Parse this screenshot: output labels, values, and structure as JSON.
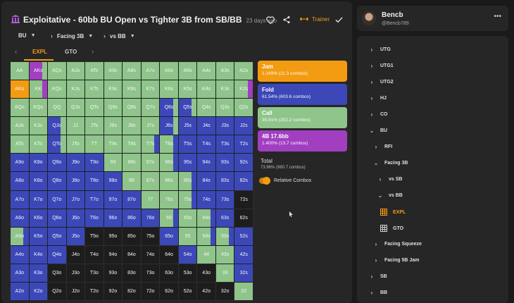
{
  "header": {
    "title": "Exploitative - 60bb BU Open vs Tighter 3B from SB/BB",
    "time_ago": "23 days ago",
    "trainer_label": "Trainer"
  },
  "filters": [
    {
      "label": "BU"
    },
    {
      "label": "Facing 3B"
    },
    {
      "label": "vs BB"
    }
  ],
  "tabs": [
    {
      "label": "EXPL",
      "active": true
    },
    {
      "label": "GTO",
      "active": false
    }
  ],
  "colors": {
    "jam": "#f39c12",
    "fold": "#3c48b8",
    "call": "#8fc48b",
    "bet": "#a13fc0",
    "accent": "#f39c12"
  },
  "legend": [
    {
      "key": "jam",
      "name": "Jam",
      "value": "1.149% (11.3 combos)"
    },
    {
      "key": "fold",
      "name": "Fold",
      "value": "61.54% (603.6 combos)"
    },
    {
      "key": "call",
      "name": "Call",
      "value": "35.91% (352.2 combos)"
    },
    {
      "key": "bet",
      "name": "4B 17.6bb",
      "value": "1.400% (13.7 combos)"
    }
  ],
  "total": {
    "label": "Total",
    "value": "73.96% (980.7 combos)"
  },
  "relative_combos": {
    "label": "Relative Combos",
    "on": true
  },
  "grid": {
    "rows": [
      [
        "AA",
        "AKs",
        "AQs",
        "AJs",
        "ATs",
        "A9s",
        "A8s",
        "A7s",
        "A6s",
        "A5s",
        "A4s",
        "A3s",
        "A2s"
      ],
      [
        "AKo",
        "KK",
        "KQs",
        "KJs",
        "KTs",
        "K9s",
        "K8s",
        "K7s",
        "K6s",
        "K5s",
        "K4s",
        "K3s",
        "K2s"
      ],
      [
        "AQo",
        "KQo",
        "QQ",
        "QJs",
        "QTs",
        "Q9s",
        "Q8s",
        "Q7s",
        "Q6s",
        "Q5s",
        "Q4s",
        "Q3s",
        "Q2s"
      ],
      [
        "AJo",
        "KJo",
        "QJo",
        "JJ",
        "JTs",
        "J9s",
        "J8s",
        "J7s",
        "J6s",
        "J5s",
        "J4s",
        "J3s",
        "J2s"
      ],
      [
        "ATo",
        "KTo",
        "QTo",
        "JTo",
        "TT",
        "T9s",
        "T8s",
        "T7s",
        "T6s",
        "T5s",
        "T4s",
        "T3s",
        "T2s"
      ],
      [
        "A9o",
        "K9o",
        "Q9o",
        "J9o",
        "T9o",
        "99",
        "98s",
        "97s",
        "96s",
        "95s",
        "94s",
        "93s",
        "92s"
      ],
      [
        "A8o",
        "K8o",
        "Q8o",
        "J8o",
        "T8o",
        "98o",
        "88",
        "87s",
        "86s",
        "85s",
        "84s",
        "83s",
        "82s"
      ],
      [
        "A7o",
        "K7o",
        "Q7o",
        "J7o",
        "T7o",
        "97o",
        "87o",
        "77",
        "76s",
        "75s",
        "74s",
        "73s",
        "72s"
      ],
      [
        "A6o",
        "K6o",
        "Q6o",
        "J6o",
        "T6o",
        "96o",
        "86o",
        "76o",
        "66",
        "65s",
        "64s",
        "63s",
        "62s"
      ],
      [
        "A5o",
        "K5o",
        "Q5o",
        "J5o",
        "T5o",
        "95o",
        "85o",
        "75o",
        "65o",
        "55",
        "54s",
        "53s",
        "52s"
      ],
      [
        "A4o",
        "K4o",
        "Q4o",
        "J4o",
        "T4o",
        "94o",
        "84o",
        "74o",
        "64o",
        "54o",
        "44",
        "43s",
        "42s"
      ],
      [
        "A3o",
        "K3o",
        "Q3o",
        "J3o",
        "T3o",
        "93o",
        "83o",
        "73o",
        "63o",
        "53o",
        "43o",
        "33",
        "32s"
      ],
      [
        "A2o",
        "K2o",
        "Q2o",
        "J2o",
        "T2o",
        "92o",
        "82o",
        "72o",
        "62o",
        "52o",
        "42o",
        "32o",
        "22"
      ]
    ],
    "actions": [
      [
        "C",
        "PC",
        "C",
        "C",
        "C",
        "C",
        "C",
        "C",
        "C",
        "C",
        "C",
        "C",
        "C"
      ],
      [
        "J",
        "CP",
        "C",
        "C",
        "C",
        "C",
        "C",
        "C",
        "C",
        "C",
        "C",
        "C",
        "CP"
      ],
      [
        "C",
        "C",
        "C",
        "C",
        "C",
        "C",
        "C",
        "C",
        "FC",
        "FC",
        "C",
        "C",
        "C"
      ],
      [
        "C",
        "C",
        "FC",
        "C",
        "C",
        "C",
        "C",
        "C",
        "FC",
        "F",
        "F",
        "F",
        "F"
      ],
      [
        "C",
        "C",
        "FC",
        "C",
        "C",
        "C",
        "C",
        "CF",
        "CF",
        "F",
        "F",
        "F",
        "F"
      ],
      [
        "F",
        "F",
        "F",
        "F",
        "F",
        "C",
        "C",
        "C",
        "CF",
        "F",
        "F",
        "F",
        "F"
      ],
      [
        "F",
        "F",
        "F",
        "F",
        "F",
        "F",
        "C",
        "C",
        "C",
        "CF",
        "F",
        "F",
        "F"
      ],
      [
        "F",
        "F",
        "F",
        "F",
        "F",
        "F",
        "F",
        "C",
        "C",
        "CF",
        "F",
        "F",
        "N"
      ],
      [
        "F",
        "F",
        "F",
        "F",
        "F",
        "F",
        "F",
        "F",
        "CF",
        "C",
        "CF",
        "F",
        "N"
      ],
      [
        "CF",
        "F",
        "F",
        "F",
        "N",
        "N",
        "N",
        "N",
        "F",
        "C",
        "CF",
        "CF",
        "F"
      ],
      [
        "F",
        "F",
        "F",
        "N",
        "N",
        "N",
        "N",
        "N",
        "N",
        "F",
        "C",
        "C",
        "F"
      ],
      [
        "F",
        "F",
        "N",
        "N",
        "N",
        "N",
        "N",
        "N",
        "N",
        "N",
        "N",
        "C",
        "F"
      ],
      [
        "F",
        "F",
        "N",
        "N",
        "N",
        "N",
        "N",
        "N",
        "N",
        "N",
        "N",
        "N",
        "C"
      ]
    ]
  },
  "profile": {
    "name": "Bencb",
    "handle": "@Bencb789"
  },
  "tree": [
    {
      "label": "UTG",
      "depth": 0,
      "expanded": false
    },
    {
      "label": "UTG1",
      "depth": 0,
      "expanded": false
    },
    {
      "label": "UTG2",
      "depth": 0,
      "expanded": false
    },
    {
      "label": "HJ",
      "depth": 0,
      "expanded": false
    },
    {
      "label": "CO",
      "depth": 0,
      "expanded": false
    },
    {
      "label": "BU",
      "depth": 0,
      "expanded": true
    },
    {
      "label": "RFI",
      "depth": 1,
      "expanded": false
    },
    {
      "label": "Facing 3B",
      "depth": 1,
      "expanded": true
    },
    {
      "label": "vs SB",
      "depth": 2,
      "expanded": false
    },
    {
      "label": "vs BB",
      "depth": 2,
      "expanded": true
    },
    {
      "label": "EXPL",
      "depth": 3,
      "leaf": true,
      "selected": true
    },
    {
      "label": "GTO",
      "depth": 3,
      "leaf": true,
      "selected": false
    },
    {
      "label": "Facing Squeeze",
      "depth": 1,
      "expanded": false
    },
    {
      "label": "Facing 5B Jam",
      "depth": 1,
      "expanded": false
    },
    {
      "label": "SB",
      "depth": 0,
      "expanded": false
    },
    {
      "label": "BB",
      "depth": 0,
      "expanded": false
    }
  ]
}
